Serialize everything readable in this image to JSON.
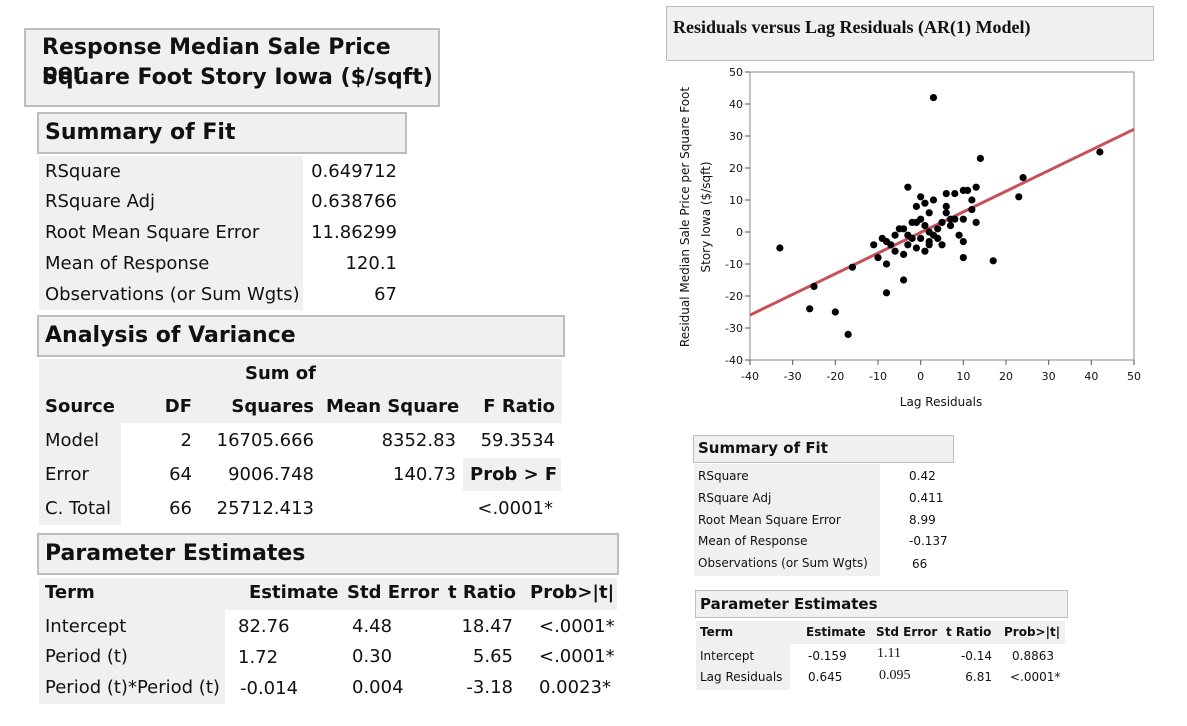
{
  "left": {
    "response_title": [
      "Response Median Sale Price per",
      "Square Foot Story Iowa  ($/sqft)"
    ],
    "summary_of_fit": {
      "title": "Summary of Fit",
      "rows": [
        {
          "label": "RSquare",
          "value": "0.649712"
        },
        {
          "label": "RSquare Adj",
          "value": "0.638766"
        },
        {
          "label": "Root Mean Square Error",
          "value": "11.86299"
        },
        {
          "label": "Mean of Response",
          "value": "120.1"
        },
        {
          "label": "Observations (or Sum Wgts)",
          "value": "67"
        }
      ]
    },
    "anova": {
      "title": "Analysis of Variance",
      "header_top": "Sum of",
      "headers": [
        "Source",
        "DF",
        "Squares",
        "Mean Square",
        "F Ratio"
      ],
      "rows": [
        {
          "source": "Model",
          "df": "2",
          "ss": "16705.666",
          "ms": "8352.83",
          "f": "59.3534"
        },
        {
          "source": "Error",
          "df": "64",
          "ss": "9006.748",
          "ms": "140.73",
          "f": "Prob > F"
        },
        {
          "source": "C. Total",
          "df": "66",
          "ss": "25712.413",
          "ms": "",
          "f": "<.0001*"
        }
      ]
    },
    "parameter_estimates": {
      "title": "Parameter Estimates",
      "headers": [
        "Term",
        "Estimate",
        "Std Error",
        "t Ratio",
        "Prob>|t|"
      ],
      "rows": [
        {
          "term": "Intercept",
          "estimate": "82.76",
          "se": "4.48",
          "t": "18.47",
          "p": "<.0001*"
        },
        {
          "term": "Period (t)",
          "estimate": "1.72",
          "se": "0.30",
          "t": "5.65",
          "p": "<.0001*"
        },
        {
          "term": "Period (t)*Period (t)",
          "estimate": "-0.014",
          "se": "0.004",
          "t": "-3.18",
          "p": "0.0023*"
        }
      ]
    }
  },
  "right": {
    "summary_of_fit": {
      "title": "Summary of Fit",
      "rows": [
        {
          "label": "RSquare",
          "value": "0.42"
        },
        {
          "label": "RSquare Adj",
          "value": "0.411"
        },
        {
          "label": "Root Mean Square Error",
          "value": "8.99"
        },
        {
          "label": "Mean of Response",
          "value": "-0.137"
        },
        {
          "label": "Observations (or Sum Wgts)",
          "value": "66"
        }
      ]
    },
    "parameter_estimates": {
      "title": "Parameter Estimates",
      "headers": [
        "Term",
        "Estimate",
        "Std Error",
        "t Ratio",
        "Prob>|t|"
      ],
      "rows": [
        {
          "term": "Intercept",
          "estimate": "-0.159",
          "se": "1.11",
          "t": "-0.14",
          "p": "0.8863"
        },
        {
          "term": "Lag Residuals",
          "estimate": "0.645",
          "se": "0.095",
          "t": "6.81",
          "p": "<.0001*"
        }
      ]
    }
  },
  "chart_data": {
    "type": "scatter",
    "title": "Residuals versus Lag Residuals (AR(1) Model)",
    "xlabel": "Lag Residuals",
    "ylabel_lines": [
      "Residual Median Sale Price per Square Foot",
      "Story Iowa  ($/sqft)"
    ],
    "xlim": [
      -40,
      50
    ],
    "ylim": [
      -40,
      50
    ],
    "xticks": [
      -40,
      -30,
      -20,
      -10,
      0,
      10,
      20,
      30,
      40,
      50
    ],
    "yticks": [
      -40,
      -30,
      -20,
      -10,
      0,
      10,
      20,
      30,
      40,
      50
    ],
    "point_color": "#000000",
    "line_color": "#c8505a",
    "fit_line": {
      "intercept": -0.159,
      "slope": 0.645
    },
    "points": [
      [
        3,
        42
      ],
      [
        42,
        25
      ],
      [
        24,
        17
      ],
      [
        23,
        11
      ],
      [
        14,
        23
      ],
      [
        -33,
        -5
      ],
      [
        -25,
        -17
      ],
      [
        -26,
        -24
      ],
      [
        -20,
        -25
      ],
      [
        -17,
        -32
      ],
      [
        -16,
        -11
      ],
      [
        -8,
        -19
      ],
      [
        -4,
        -15
      ],
      [
        -8,
        -10
      ],
      [
        -10,
        -8
      ],
      [
        -6,
        -6
      ],
      [
        -4,
        -7
      ],
      [
        -3,
        -4
      ],
      [
        -1,
        -5
      ],
      [
        1,
        -6
      ],
      [
        2,
        -3
      ],
      [
        3,
        -1
      ],
      [
        5,
        -4
      ],
      [
        -2,
        -2
      ],
      [
        0,
        -2
      ],
      [
        4,
        1
      ],
      [
        -7,
        -4
      ],
      [
        -9,
        -2
      ],
      [
        -11,
        -4
      ],
      [
        -5,
        1
      ],
      [
        -2,
        3
      ],
      [
        0,
        4
      ],
      [
        2,
        6
      ],
      [
        6,
        6
      ],
      [
        8,
        4
      ],
      [
        10,
        4
      ],
      [
        12,
        7
      ],
      [
        13,
        3
      ],
      [
        9,
        -1
      ],
      [
        10,
        -3
      ],
      [
        10,
        -8
      ],
      [
        17,
        -9
      ],
      [
        7,
        2
      ],
      [
        -4,
        1
      ],
      [
        -1,
        8
      ],
      [
        1,
        9
      ],
      [
        3,
        10
      ],
      [
        6,
        12
      ],
      [
        8,
        12
      ],
      [
        10,
        13
      ],
      [
        11,
        13
      ],
      [
        13,
        14
      ],
      [
        -3,
        14
      ],
      [
        0,
        11
      ],
      [
        7,
        4
      ],
      [
        4,
        -2
      ],
      [
        2,
        -4
      ],
      [
        -6,
        -1
      ],
      [
        -3,
        -1
      ],
      [
        5,
        3
      ],
      [
        12,
        10
      ],
      [
        -1,
        3
      ],
      [
        2,
        0
      ],
      [
        6,
        8
      ],
      [
        -8,
        -3
      ],
      [
        1,
        2
      ]
    ]
  }
}
